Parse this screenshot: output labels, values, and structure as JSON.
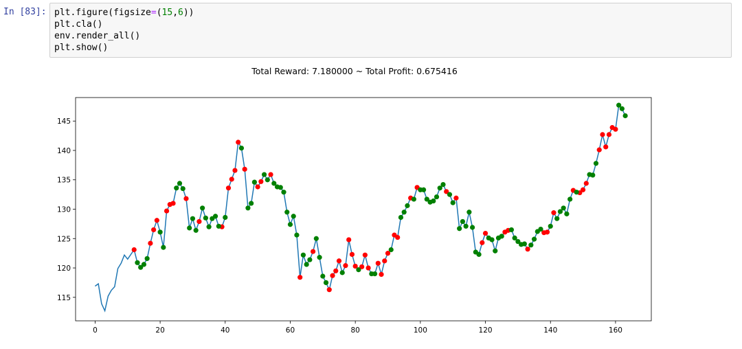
{
  "cell": {
    "prompt": "In [83]:",
    "code_lines": [
      "plt.figure(figsize=(15,6))",
      "plt.cla()",
      "env.render_all()",
      "plt.show()"
    ]
  },
  "chart_data": {
    "type": "line",
    "title": "Total Reward: 7.180000 ~ Total Profit: 0.675416",
    "xlabel": "",
    "ylabel": "",
    "xlim": [
      -6,
      171
    ],
    "ylim": [
      111,
      149
    ],
    "xticks": [
      0,
      20,
      40,
      60,
      80,
      100,
      120,
      140,
      160
    ],
    "yticks": [
      115,
      120,
      125,
      130,
      135,
      140,
      145
    ],
    "line_color": "#1f77b4",
    "buy_color": "#008000",
    "sell_color": "#ff0000",
    "values": [
      116.9,
      117.3,
      113.9,
      112.7,
      115.2,
      116.2,
      116.8,
      119.9,
      120.8,
      122.2,
      121.5,
      122.3,
      123.1,
      120.9,
      120.1,
      120.6,
      121.6,
      124.2,
      126.5,
      128.1,
      126.1,
      123.5,
      129.7,
      130.8,
      131.0,
      133.6,
      134.4,
      133.5,
      131.8,
      126.8,
      128.4,
      126.4,
      127.9,
      130.2,
      128.5,
      127.0,
      128.4,
      128.8,
      127.1,
      127.0,
      128.6,
      133.6,
      135.1,
      136.6,
      141.4,
      140.4,
      136.8,
      130.2,
      131.0,
      134.6,
      133.8,
      134.7,
      135.9,
      135.0,
      135.9,
      134.4,
      133.8,
      133.7,
      132.9,
      129.5,
      127.4,
      128.8,
      125.6,
      118.4,
      122.2,
      120.6,
      121.4,
      122.8,
      125.0,
      121.8,
      118.6,
      117.5,
      116.3,
      118.7,
      119.5,
      121.2,
      119.2,
      120.4,
      124.8,
      122.3,
      120.3,
      119.7,
      120.2,
      122.2,
      120.0,
      119.0,
      119.0,
      120.8,
      118.9,
      121.2,
      122.5,
      123.1,
      125.6,
      125.2,
      128.6,
      129.5,
      130.6,
      131.9,
      131.7,
      133.7,
      133.3,
      133.3,
      131.7,
      131.2,
      131.4,
      132.1,
      133.6,
      134.2,
      133.0,
      132.5,
      131.1,
      131.9,
      126.7,
      127.9,
      127.1,
      129.5,
      126.9,
      122.7,
      122.3,
      124.3,
      125.9,
      125.1,
      124.8,
      122.9,
      125.1,
      125.4,
      126.1,
      126.4,
      126.5,
      125.1,
      124.5,
      124.0,
      124.1,
      123.2,
      123.9,
      124.9,
      126.2,
      126.6,
      126.0,
      126.1,
      127.1,
      129.4,
      128.4,
      129.6,
      130.2,
      129.2,
      131.7,
      133.2,
      132.9,
      132.8,
      133.3,
      134.4,
      135.9,
      135.8,
      137.8,
      140.1,
      142.7,
      140.6,
      142.7,
      143.9,
      143.6,
      147.7,
      147.1,
      145.9
    ],
    "buy_indices": [
      13,
      14,
      15,
      16,
      20,
      21,
      25,
      26,
      27,
      29,
      30,
      31,
      33,
      34,
      35,
      36,
      37,
      38,
      40,
      45,
      47,
      48,
      49,
      52,
      53,
      55,
      56,
      57,
      58,
      59,
      60,
      61,
      62,
      64,
      65,
      66,
      68,
      69,
      70,
      71,
      76,
      81,
      85,
      86,
      91,
      94,
      95,
      96,
      98,
      100,
      101,
      102,
      103,
      104,
      105,
      106,
      107,
      109,
      110,
      112,
      113,
      114,
      115,
      116,
      117,
      118,
      121,
      122,
      123,
      124,
      125,
      128,
      129,
      130,
      131,
      132,
      134,
      135,
      136,
      137,
      140,
      142,
      143,
      144,
      145,
      146,
      148,
      152,
      153,
      154,
      161,
      162,
      163
    ],
    "sell_indices": [
      12,
      17,
      18,
      19,
      22,
      23,
      24,
      28,
      32,
      39,
      41,
      42,
      43,
      44,
      46,
      50,
      51,
      54,
      63,
      67,
      72,
      73,
      74,
      75,
      77,
      78,
      79,
      80,
      82,
      83,
      84,
      87,
      88,
      89,
      90,
      92,
      93,
      97,
      99,
      108,
      111,
      119,
      120,
      126,
      127,
      133,
      138,
      139,
      141,
      147,
      149,
      150,
      151,
      155,
      156,
      157,
      158,
      159,
      160
    ]
  }
}
